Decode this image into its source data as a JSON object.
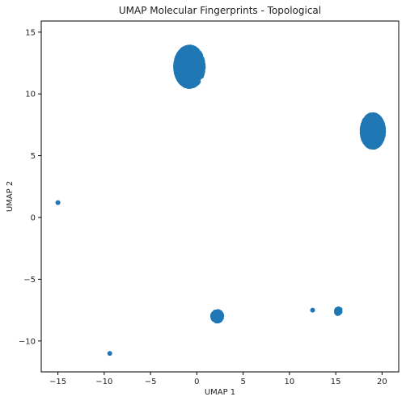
{
  "chart_data": {
    "type": "scatter",
    "title": "UMAP Molecular Fingerprints - Topological",
    "xlabel": "UMAP 1",
    "ylabel": "UMAP 2",
    "xlim": [
      -16.8,
      21.8
    ],
    "ylim": [
      -12.5,
      15.9
    ],
    "xticks": [
      -15,
      -10,
      -5,
      0,
      5,
      10,
      15,
      20
    ],
    "xtick_labels": [
      "−15",
      "−10",
      "−5",
      "0",
      "5",
      "10",
      "15",
      "20"
    ],
    "yticks": [
      -10,
      -5,
      0,
      5,
      10,
      15
    ],
    "ytick_labels": [
      "−10",
      "−5",
      "0",
      "5",
      "10",
      "15"
    ],
    "grid": false,
    "legend": "none",
    "marker_color": "#1f77b4",
    "clusters": [
      {
        "center": [
          -0.8,
          12.2
        ],
        "spread": [
          1.35,
          1.45
        ],
        "count": 1500
      },
      {
        "center": [
          19.0,
          7.0
        ],
        "spread": [
          1.05,
          1.2
        ],
        "count": 1200
      },
      {
        "center": [
          2.2,
          -8.0
        ],
        "spread": [
          0.45,
          0.35
        ],
        "count": 250
      },
      {
        "center": [
          15.3,
          -7.6
        ],
        "spread": [
          0.22,
          0.18
        ],
        "count": 60
      }
    ],
    "points": [
      {
        "x": -15.0,
        "y": 1.2
      },
      {
        "x": -9.4,
        "y": -11.0
      },
      {
        "x": 12.5,
        "y": -7.5
      }
    ]
  }
}
